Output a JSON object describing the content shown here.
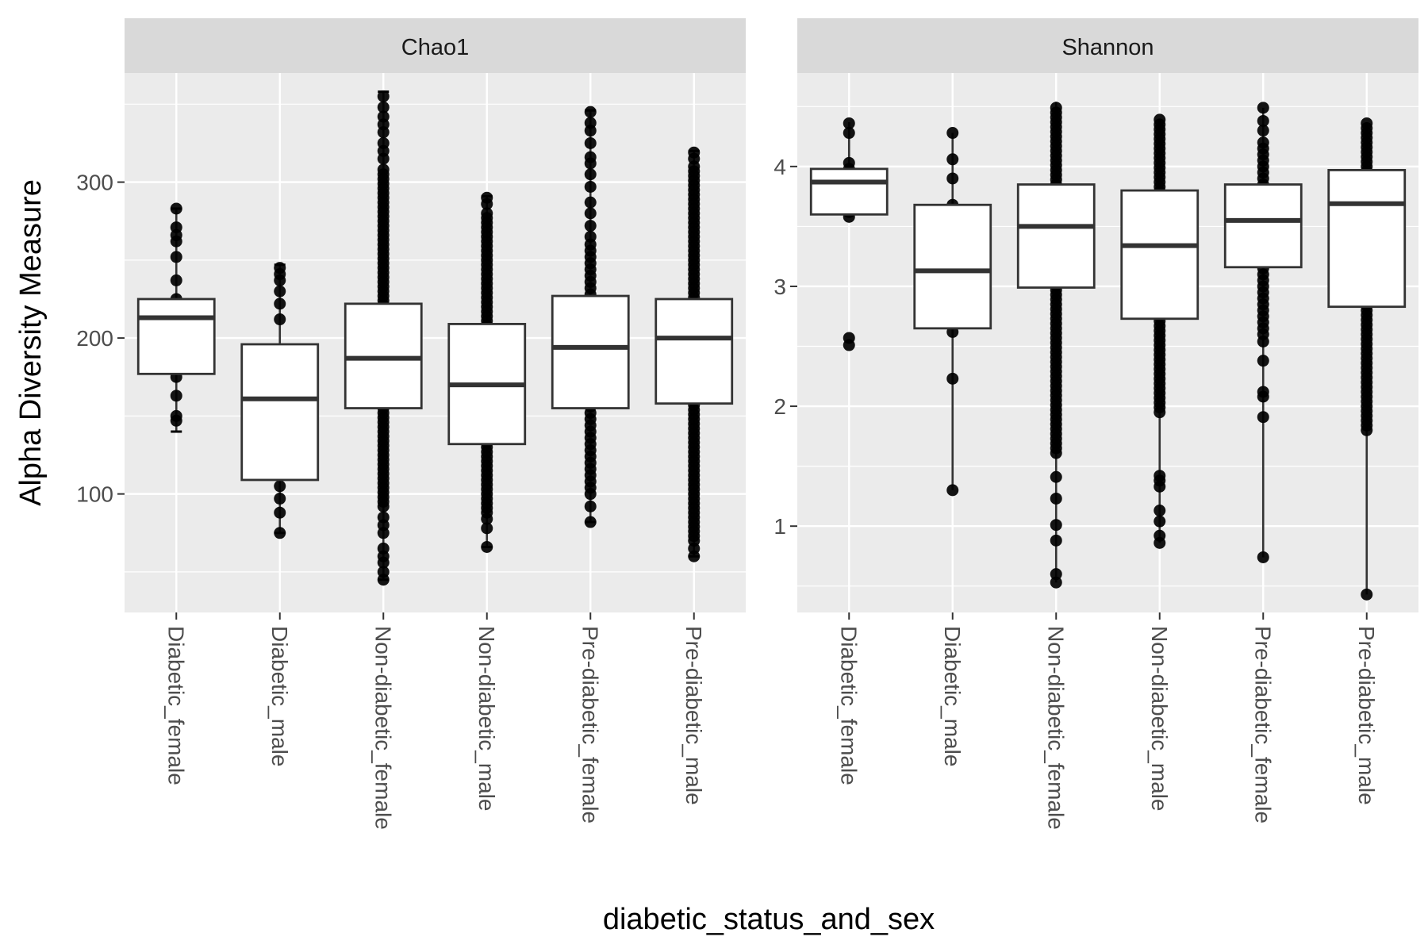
{
  "chart_data": {
    "type": "boxplot",
    "xlabel": "diabetic_status_and_sex",
    "ylabel": "Alpha Diversity Measure",
    "categories": [
      "Diabetic_female",
      "Diabetic_male",
      "Non-diabetic_female",
      "Non-diabetic_male",
      "Pre-diabetic_female",
      "Pre-diabetic_male"
    ],
    "colors": {
      "panel_bg": "#ebebeb",
      "strip_bg": "#d9d9d9",
      "grid": "#ffffff",
      "box_fill": "#ffffff",
      "box_line": "#333333",
      "point": "#000000"
    },
    "panels": [
      {
        "id": "chao1",
        "title": "Chao1",
        "ylim": [
          24,
          370
        ],
        "yticks": [
          100,
          200,
          300
        ],
        "groups": [
          {
            "name": "Diabetic_female",
            "q1": 177,
            "median": 213,
            "q3": 225,
            "whisker_low": 140,
            "whisker_high": 283,
            "errorbar": true,
            "points": [
              147,
              150,
              163,
              175,
              190,
              205,
              215,
              225,
              237,
              252,
              262,
              266,
              271,
              283
            ]
          },
          {
            "name": "Diabetic_male",
            "q1": 109,
            "median": 161,
            "q3": 196,
            "whisker_low": 75,
            "whisker_high": 247,
            "errorbar": true,
            "points": [
              75,
              88,
              97,
              105,
              212,
              222,
              230,
              237,
              241,
              245
            ]
          },
          {
            "name": "Non-diabetic_female",
            "q1": 155,
            "median": 187,
            "q3": 222,
            "whisker_low": 45,
            "whisker_high": 358,
            "errorbar": true,
            "dense_range": [
              92,
              310
            ],
            "dense_step": 3,
            "points": [
              45,
              50,
              56,
              60,
              65,
              75,
              80,
              85,
              315,
              320,
              325,
              332,
              337,
              342,
              348,
              355
            ]
          },
          {
            "name": "Non-diabetic_male",
            "q1": 132,
            "median": 170,
            "q3": 209,
            "whisker_low": 66,
            "whisker_high": 291,
            "errorbar": true,
            "dense_range": [
              88,
              282
            ],
            "dense_step": 3,
            "points": [
              66,
              78,
              84,
              286,
              290
            ]
          },
          {
            "name": "Pre-diabetic_female",
            "q1": 155,
            "median": 194,
            "q3": 227,
            "whisker_low": 82,
            "whisker_high": 346,
            "errorbar": true,
            "dense_range": [
              100,
              260
            ],
            "dense_step": 4,
            "points": [
              82,
              92,
              265,
              272,
              280,
              287,
              297,
              305,
              312,
              316,
              325,
              333,
              338,
              345
            ]
          },
          {
            "name": "Pre-diabetic_male",
            "q1": 158,
            "median": 200,
            "q3": 225,
            "whisker_low": 60,
            "whisker_high": 320,
            "errorbar": true,
            "dense_range": [
              70,
              310
            ],
            "dense_step": 3,
            "points": [
              60,
              65,
              315,
              319
            ]
          }
        ]
      },
      {
        "id": "shannon",
        "title": "Shannon",
        "ylim": [
          0.28,
          4.78
        ],
        "yticks": [
          1,
          2,
          3,
          4
        ],
        "groups": [
          {
            "name": "Diabetic_female",
            "q1": 3.6,
            "median": 3.87,
            "q3": 3.98,
            "whisker_low": 3.58,
            "whisker_high": 4.37,
            "errorbar": false,
            "points": [
              2.51,
              2.57,
              3.58,
              3.62,
              3.72,
              3.98,
              4.03,
              4.28,
              4.36
            ]
          },
          {
            "name": "Diabetic_male",
            "q1": 2.65,
            "median": 3.13,
            "q3": 3.68,
            "whisker_low": 1.3,
            "whisker_high": 4.28,
            "errorbar": false,
            "points": [
              1.3,
              2.23,
              2.62,
              3.68,
              3.9,
              4.06,
              4.28
            ]
          },
          {
            "name": "Non-diabetic_female",
            "q1": 2.99,
            "median": 3.5,
            "q3": 3.85,
            "whisker_low": 0.53,
            "whisker_high": 4.54,
            "errorbar": false,
            "dense_range": [
              1.65,
              4.52
            ],
            "dense_step": 0.04,
            "points": [
              0.53,
              0.6,
              0.88,
              1.01,
              1.23,
              1.41,
              1.61
            ]
          },
          {
            "name": "Non-diabetic_male",
            "q1": 2.73,
            "median": 3.34,
            "q3": 3.8,
            "whisker_low": 0.86,
            "whisker_high": 4.4,
            "errorbar": false,
            "dense_range": [
              1.95,
              4.4
            ],
            "dense_step": 0.04,
            "points": [
              0.86,
              0.92,
              1.04,
              1.13,
              1.33,
              1.38,
              1.42
            ]
          },
          {
            "name": "Pre-diabetic_female",
            "q1": 3.16,
            "median": 3.55,
            "q3": 3.85,
            "whisker_low": 0.74,
            "whisker_high": 4.49,
            "errorbar": false,
            "dense_range": [
              2.6,
              4.2
            ],
            "dense_step": 0.05,
            "points": [
              0.74,
              1.91,
              2.08,
              2.12,
              2.38,
              2.54,
              4.3,
              4.38,
              4.49
            ]
          },
          {
            "name": "Pre-diabetic_male",
            "q1": 2.83,
            "median": 3.69,
            "q3": 3.97,
            "whisker_low": 0.43,
            "whisker_high": 4.37,
            "errorbar": false,
            "dense_range": [
              1.8,
              4.37
            ],
            "dense_step": 0.04,
            "points": [
              0.43
            ]
          }
        ]
      }
    ]
  }
}
